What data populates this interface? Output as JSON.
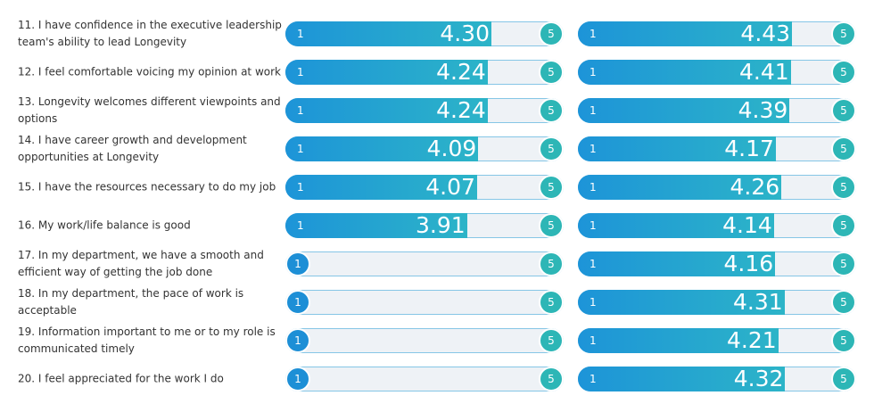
{
  "scale": {
    "min": 1,
    "max": 5
  },
  "rows": [
    "11. I have confidence in the executive leadership team's ability to lead Longevity",
    "12. I feel comfortable voicing my opinion at work",
    "13. Longevity welcomes different viewpoints and options",
    "14. I have career growth and development opportunities at Longevity",
    "15. I have the resources necessary to do my job",
    "16. My work/life balance is good",
    "17. In my department, we have a smooth and efficient way of getting the job done",
    "18. In my department, the pace of work is acceptable",
    "19. Information important to me or to my role is communicated timely",
    "20. I feel appreciated for the work I do"
  ],
  "columns": [
    {
      "values": [
        4.3,
        4.24,
        4.24,
        4.09,
        4.07,
        3.91,
        null,
        null,
        null,
        null
      ],
      "value_labels": [
        "4.30",
        "4.24",
        "4.24",
        "4.09",
        "4.07",
        "3.91",
        null,
        null,
        null,
        null
      ]
    },
    {
      "values": [
        4.43,
        4.41,
        4.39,
        4.17,
        4.26,
        4.14,
        4.16,
        4.31,
        4.21,
        4.32
      ],
      "value_labels": [
        "4.43",
        "4.41",
        "4.39",
        "4.17",
        "4.26",
        "4.14",
        "4.16",
        "4.31",
        "4.21",
        "4.32"
      ]
    }
  ]
}
